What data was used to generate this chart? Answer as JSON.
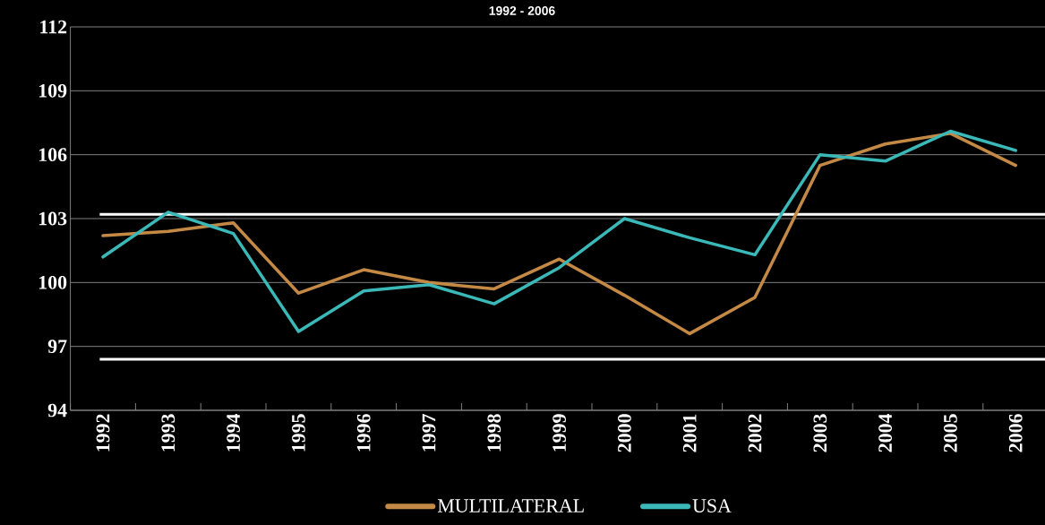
{
  "chart_data": {
    "type": "line",
    "title": "1992 - 2006",
    "categories": [
      "1992",
      "1993",
      "1994",
      "1995",
      "1996",
      "1997",
      "1998",
      "1999",
      "2000",
      "2001",
      "2002",
      "2003",
      "2004",
      "2005",
      "2006"
    ],
    "series": [
      {
        "name": "MULTILATERAL",
        "color": "#c48a45",
        "values": [
          102.2,
          102.4,
          102.8,
          99.5,
          100.6,
          100.0,
          99.7,
          101.1,
          99.4,
          97.6,
          99.3,
          105.5,
          106.5,
          107.0,
          105.5
        ]
      },
      {
        "name": "USA",
        "color": "#3bb8b8",
        "values": [
          101.2,
          103.3,
          102.3,
          97.7,
          99.6,
          99.9,
          99.0,
          100.7,
          103.0,
          102.1,
          101.3,
          106.0,
          105.7,
          107.1,
          106.2
        ]
      }
    ],
    "ylim": [
      94,
      112
    ],
    "yticks": [
      94,
      97,
      100,
      103,
      106,
      109,
      112
    ],
    "ref_lines": [
      {
        "axis": "y",
        "value": 103.2,
        "color": "#ffffff"
      },
      {
        "axis": "y",
        "value": 96.4,
        "color": "#ffffff"
      }
    ],
    "grid": "y",
    "legend": "bottom",
    "marker": "none",
    "line_style": "solid"
  }
}
